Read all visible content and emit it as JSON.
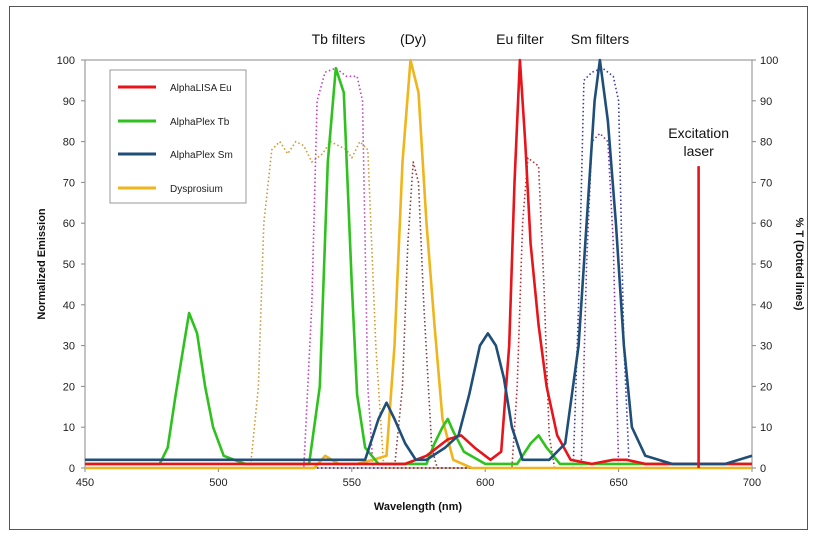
{
  "chart_data": {
    "type": "line",
    "xlabel": "Wavelength (nm)",
    "ylabel": "Normalized Emission",
    "y2label": "% T (Dotted lines)",
    "xlim": [
      450,
      700
    ],
    "ylim": [
      0,
      100
    ],
    "y2lim": [
      0,
      100
    ],
    "x_ticks": [
      "450",
      "500",
      "550",
      "600",
      "650",
      "700"
    ],
    "y_ticks": [
      "0",
      "10",
      "20",
      "30",
      "40",
      "50",
      "60",
      "70",
      "80",
      "90",
      "100"
    ],
    "legend_position": "top-left",
    "grid": false,
    "series": [
      {
        "name": "AlphaLISA Eu",
        "color": "#e8141b",
        "style": "solid",
        "points": [
          [
            450,
            1
          ],
          [
            570,
            1
          ],
          [
            578,
            3
          ],
          [
            586,
            7
          ],
          [
            591,
            8
          ],
          [
            596,
            5
          ],
          [
            602,
            2
          ],
          [
            606,
            4
          ],
          [
            609,
            30
          ],
          [
            611,
            70
          ],
          [
            613,
            100
          ],
          [
            615,
            80
          ],
          [
            617,
            55
          ],
          [
            620,
            35
          ],
          [
            623,
            20
          ],
          [
            627,
            8
          ],
          [
            632,
            2
          ],
          [
            640,
            1
          ],
          [
            648,
            2
          ],
          [
            653,
            2
          ],
          [
            660,
            1
          ],
          [
            700,
            1
          ]
        ]
      },
      {
        "name": "AlphaPlex Tb",
        "color": "#2fc21e",
        "style": "solid",
        "points": [
          [
            450,
            1
          ],
          [
            478,
            1
          ],
          [
            481,
            5
          ],
          [
            484,
            18
          ],
          [
            487,
            30
          ],
          [
            489,
            38
          ],
          [
            492,
            33
          ],
          [
            495,
            20
          ],
          [
            498,
            10
          ],
          [
            502,
            3
          ],
          [
            510,
            1
          ],
          [
            534,
            1
          ],
          [
            538,
            20
          ],
          [
            541,
            75
          ],
          [
            544,
            98
          ],
          [
            547,
            92
          ],
          [
            550,
            45
          ],
          [
            552,
            18
          ],
          [
            555,
            5
          ],
          [
            560,
            1
          ],
          [
            578,
            1
          ],
          [
            581,
            6
          ],
          [
            584,
            10
          ],
          [
            586,
            12
          ],
          [
            588,
            9
          ],
          [
            592,
            4
          ],
          [
            600,
            1
          ],
          [
            612,
            1
          ],
          [
            617,
            6
          ],
          [
            620,
            8
          ],
          [
            623,
            5
          ],
          [
            628,
            1
          ],
          [
            700,
            1
          ]
        ]
      },
      {
        "name": "AlphaPlex Sm",
        "color": "#1f4e79",
        "style": "solid",
        "points": [
          [
            450,
            2
          ],
          [
            555,
            2
          ],
          [
            560,
            12
          ],
          [
            563,
            16
          ],
          [
            566,
            12
          ],
          [
            570,
            6
          ],
          [
            574,
            2
          ],
          [
            578,
            2
          ],
          [
            585,
            5
          ],
          [
            590,
            8
          ],
          [
            594,
            18
          ],
          [
            598,
            30
          ],
          [
            601,
            33
          ],
          [
            604,
            30
          ],
          [
            607,
            22
          ],
          [
            610,
            10
          ],
          [
            614,
            2
          ],
          [
            624,
            2
          ],
          [
            630,
            6
          ],
          [
            635,
            30
          ],
          [
            638,
            60
          ],
          [
            641,
            90
          ],
          [
            643,
            100
          ],
          [
            646,
            85
          ],
          [
            649,
            60
          ],
          [
            652,
            30
          ],
          [
            655,
            10
          ],
          [
            660,
            3
          ],
          [
            670,
            1
          ],
          [
            680,
            1
          ],
          [
            690,
            1
          ],
          [
            700,
            3
          ]
        ]
      },
      {
        "name": "Dysprosium",
        "color": "#f0b51c",
        "style": "solid",
        "points": [
          [
            450,
            0
          ],
          [
            536,
            0
          ],
          [
            540,
            3
          ],
          [
            545,
            1
          ],
          [
            552,
            1
          ],
          [
            558,
            2
          ],
          [
            563,
            3
          ],
          [
            566,
            30
          ],
          [
            569,
            75
          ],
          [
            572,
            100
          ],
          [
            575,
            92
          ],
          [
            578,
            60
          ],
          [
            581,
            35
          ],
          [
            584,
            12
          ],
          [
            588,
            2
          ],
          [
            595,
            0
          ],
          [
            700,
            0
          ]
        ]
      },
      {
        "name": "Tb filter 1",
        "color": "#cc9933",
        "style": "dotted",
        "points": [
          [
            450,
            0
          ],
          [
            512,
            0
          ],
          [
            515,
            20
          ],
          [
            517,
            60
          ],
          [
            520,
            78
          ],
          [
            523,
            80
          ],
          [
            526,
            77
          ],
          [
            529,
            80
          ],
          [
            532,
            79
          ],
          [
            535,
            75
          ],
          [
            539,
            77
          ],
          [
            542,
            80
          ],
          [
            545,
            79
          ],
          [
            548,
            78
          ],
          [
            550,
            76
          ],
          [
            553,
            80
          ],
          [
            556,
            78
          ],
          [
            559,
            30
          ],
          [
            562,
            0
          ],
          [
            700,
            0
          ]
        ]
      },
      {
        "name": "Tb filter 2",
        "color": "#c040c0",
        "style": "dotted",
        "points": [
          [
            450,
            0
          ],
          [
            532,
            0
          ],
          [
            535,
            40
          ],
          [
            537,
            90
          ],
          [
            540,
            97
          ],
          [
            544,
            98
          ],
          [
            548,
            96
          ],
          [
            552,
            96
          ],
          [
            554,
            90
          ],
          [
            556,
            20
          ],
          [
            558,
            0
          ],
          [
            700,
            0
          ]
        ]
      },
      {
        "name": "Dy filter",
        "color": "#8a3a3a",
        "style": "dotted",
        "points": [
          [
            450,
            0
          ],
          [
            566,
            0
          ],
          [
            569,
            20
          ],
          [
            571,
            55
          ],
          [
            573,
            75
          ],
          [
            575,
            70
          ],
          [
            577,
            40
          ],
          [
            580,
            5
          ],
          [
            582,
            0
          ],
          [
            700,
            0
          ]
        ]
      },
      {
        "name": "Eu filter",
        "color": "#b0303a",
        "style": "dotted",
        "points": [
          [
            450,
            0
          ],
          [
            610,
            0
          ],
          [
            612,
            20
          ],
          [
            614,
            60
          ],
          [
            616,
            76
          ],
          [
            618,
            75
          ],
          [
            620,
            74
          ],
          [
            622,
            45
          ],
          [
            624,
            8
          ],
          [
            626,
            0
          ],
          [
            700,
            0
          ]
        ]
      },
      {
        "name": "Sm filter 1",
        "color": "#3a3ab0",
        "style": "dotted",
        "points": [
          [
            450,
            0
          ],
          [
            633,
            0
          ],
          [
            635,
            40
          ],
          [
            637,
            95
          ],
          [
            640,
            97
          ],
          [
            644,
            98
          ],
          [
            648,
            96
          ],
          [
            650,
            90
          ],
          [
            652,
            30
          ],
          [
            654,
            0
          ],
          [
            700,
            0
          ]
        ]
      },
      {
        "name": "Sm filter 2",
        "color": "#7a3a9a",
        "style": "dotted",
        "points": [
          [
            450,
            0
          ],
          [
            636,
            0
          ],
          [
            638,
            50
          ],
          [
            640,
            80
          ],
          [
            643,
            82
          ],
          [
            646,
            80
          ],
          [
            648,
            55
          ],
          [
            650,
            0
          ],
          [
            700,
            0
          ]
        ]
      },
      {
        "name": "Excitation laser",
        "color": "#e8141b",
        "style": "solid",
        "points": [
          [
            680,
            0
          ],
          [
            680,
            74
          ]
        ]
      }
    ],
    "legend_entries": [
      {
        "label": "AlphaLISA Eu",
        "color": "#e8141b"
      },
      {
        "label": "AlphaPlex Tb",
        "color": "#2fc21e"
      },
      {
        "label": "AlphaPlex Sm",
        "color": "#1f4e79"
      },
      {
        "label": "Dysprosium",
        "color": "#f0b51c"
      }
    ],
    "annotations": [
      {
        "text": "Tb filters",
        "x": 545,
        "color": "#222222"
      },
      {
        "text": "(Dy)",
        "x": 573,
        "color": "#f0b51c"
      },
      {
        "text": "Eu filter",
        "x": 613,
        "color": "#222222"
      },
      {
        "text": "Sm filters",
        "x": 643,
        "color": "#222222"
      },
      {
        "text": "Excitation",
        "x": 680,
        "color": "#222222"
      },
      {
        "text": "laser",
        "x": 680,
        "color": "#222222"
      }
    ]
  }
}
